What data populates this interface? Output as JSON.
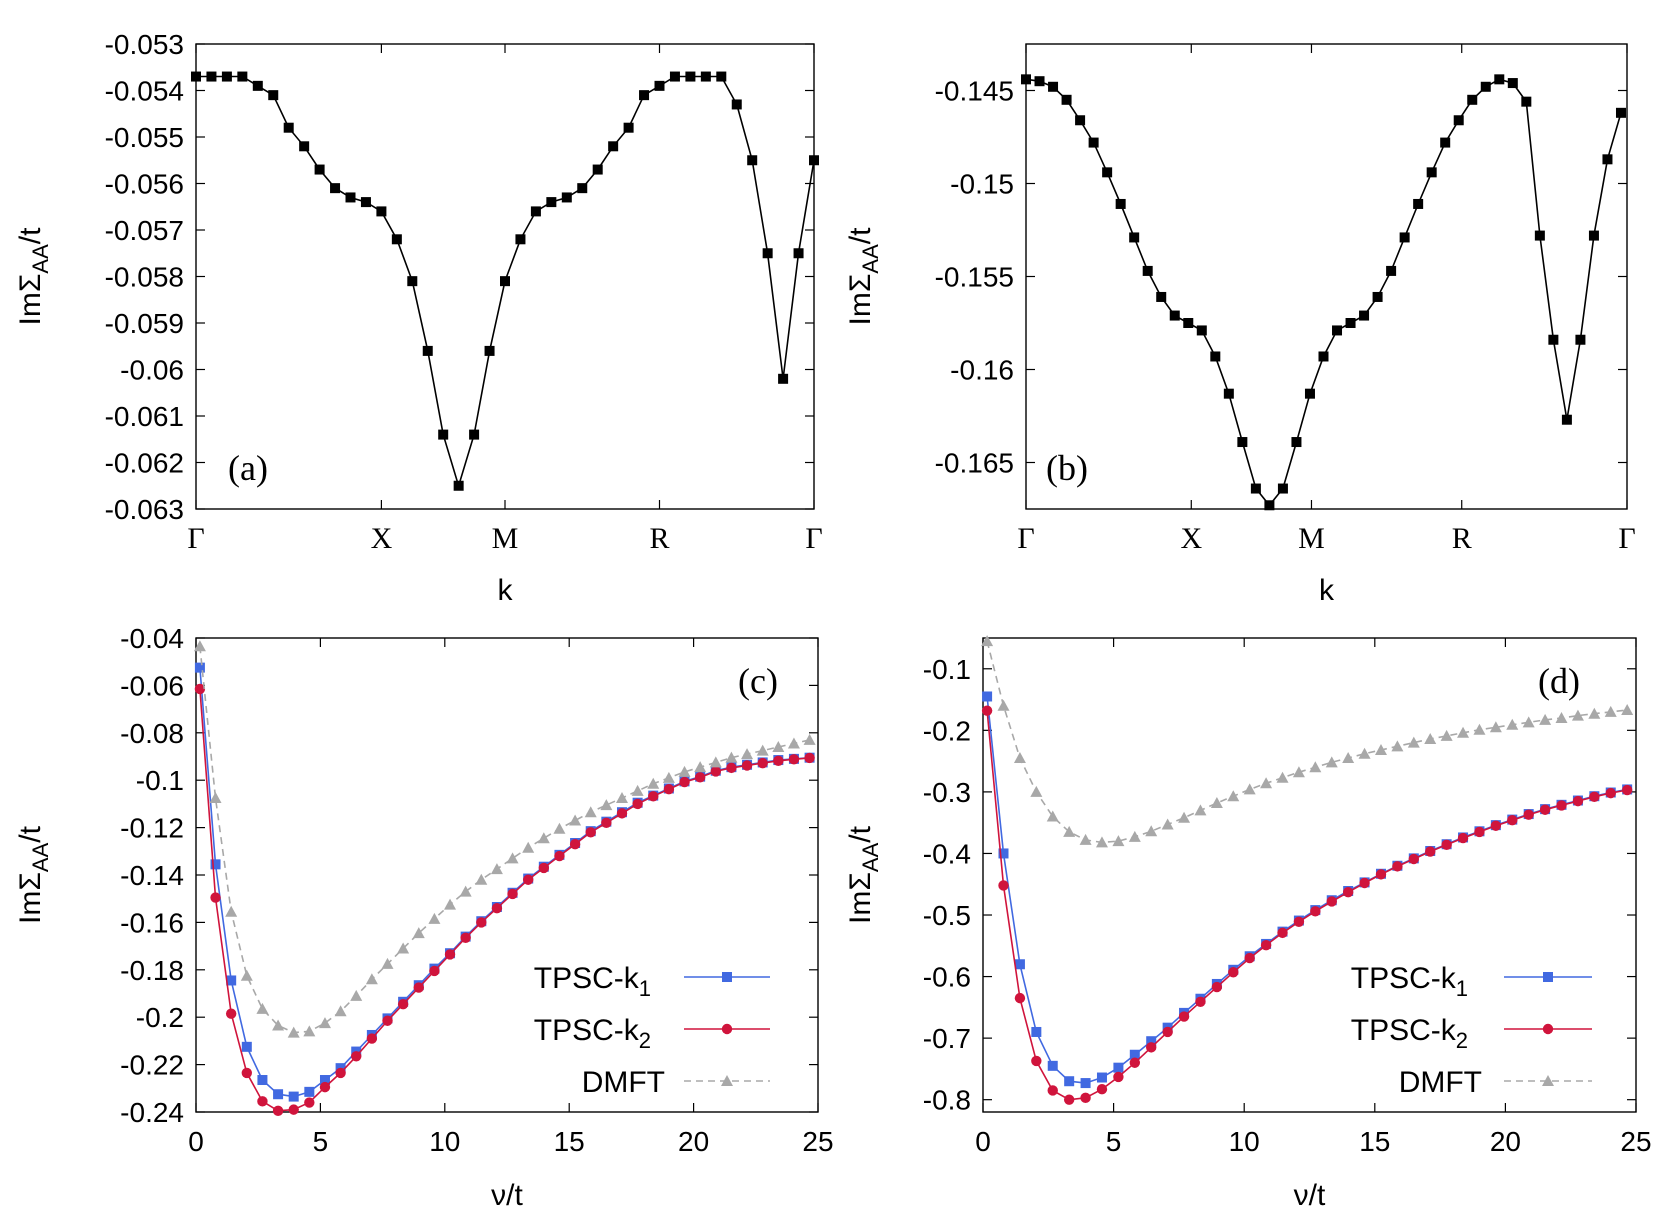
{
  "chart_data": [
    {
      "panel": "a",
      "type": "line",
      "panel_label": "(a)",
      "xlabel": "k",
      "ylabel": "ImΣAA/t",
      "ylabel_main": "ImΣ",
      "ylabel_sub": "AA",
      "ylabel_tail": "/t",
      "ylim": [
        -0.063,
        -0.053
      ],
      "yticks": [
        -0.053,
        -0.054,
        -0.055,
        -0.056,
        -0.057,
        -0.058,
        -0.059,
        -0.06,
        -0.061,
        -0.062,
        -0.063
      ],
      "ytick_labels": [
        "-0.053",
        "-0.054",
        "-0.055",
        "-0.056",
        "-0.057",
        "-0.058",
        "-0.059",
        "-0.06",
        "-0.061",
        "-0.062",
        "-0.063"
      ],
      "xlim": [
        0,
        40
      ],
      "xticks": [
        0,
        12,
        20,
        30,
        40
      ],
      "xtick_labels": [
        "Γ",
        "X",
        "M",
        "R",
        "Γ"
      ],
      "series": [
        {
          "name": "ImΣAA",
          "color": "#000000",
          "marker": "square",
          "line": "solid",
          "x": [
            0,
            1,
            2,
            3,
            4,
            5,
            6,
            7,
            8,
            9,
            10,
            11,
            12,
            13,
            14,
            15,
            16,
            17,
            18,
            19,
            20,
            21,
            22,
            23,
            24,
            25,
            26,
            27,
            28,
            29,
            30,
            31,
            32,
            33,
            34,
            35,
            36,
            37,
            38,
            39,
            40
          ],
          "values": [
            -0.0537,
            -0.0537,
            -0.0537,
            -0.0537,
            -0.0539,
            -0.0541,
            -0.0548,
            -0.0552,
            -0.0557,
            -0.0561,
            -0.0563,
            -0.0564,
            -0.0566,
            -0.0572,
            -0.0581,
            -0.0596,
            -0.0614,
            -0.0625,
            -0.0614,
            -0.0596,
            -0.0581,
            -0.0572,
            -0.0566,
            -0.0564,
            -0.0563,
            -0.0561,
            -0.0557,
            -0.0552,
            -0.0548,
            -0.0541,
            -0.0539,
            -0.0537,
            -0.0537,
            -0.0537,
            -0.0537,
            -0.0543,
            -0.0555,
            -0.0575,
            -0.0602,
            -0.0575,
            -0.0555
          ]
        }
      ]
    },
    {
      "panel": "b",
      "type": "line",
      "panel_label": "(b)",
      "xlabel": "k",
      "ylabel": "ImΣAA/t",
      "ylabel_main": "ImΣ",
      "ylabel_sub": "AA",
      "ylabel_tail": "/t",
      "ylim": [
        -0.1675,
        -0.1425
      ],
      "yticks": [
        -0.145,
        -0.15,
        -0.155,
        -0.16,
        -0.165
      ],
      "ytick_labels": [
        "-0.145",
        "-0.15",
        "-0.155",
        "-0.16",
        "-0.165"
      ],
      "xlim": [
        0,
        40
      ],
      "xticks": [
        0,
        11,
        19,
        29,
        40
      ],
      "xtick_labels": [
        "Γ",
        "X",
        "M",
        "R",
        "Γ"
      ],
      "series": [
        {
          "name": "ImΣAA",
          "color": "#000000",
          "marker": "square",
          "line": "solid",
          "x": [
            0,
            0.9,
            1.8,
            2.7,
            3.6,
            4.5,
            5.4,
            6.3,
            7.2,
            8.1,
            9,
            9.9,
            10.8,
            11.7,
            12.6,
            13.5,
            14.4,
            15.3,
            16.2,
            17.1,
            18,
            18.9,
            19.8,
            20.7,
            21.6,
            22.5,
            23.4,
            24.3,
            25.2,
            26.1,
            27,
            27.9,
            28.8,
            29.7,
            30.6,
            31.5,
            32.4,
            33.3,
            34.2,
            35.1,
            36,
            36.9,
            37.8,
            38.7,
            39.6
          ],
          "values": [
            -0.1444,
            -0.1445,
            -0.1448,
            -0.1455,
            -0.1466,
            -0.1478,
            -0.1494,
            -0.1511,
            -0.1529,
            -0.1547,
            -0.1561,
            -0.1571,
            -0.1575,
            -0.1579,
            -0.1593,
            -0.1613,
            -0.1639,
            -0.1664,
            -0.1673,
            -0.1664,
            -0.1639,
            -0.1613,
            -0.1593,
            -0.1579,
            -0.1575,
            -0.1571,
            -0.1561,
            -0.1547,
            -0.1529,
            -0.1511,
            -0.1494,
            -0.1478,
            -0.1466,
            -0.1455,
            -0.1448,
            -0.1444,
            -0.1446,
            -0.1456,
            -0.1528,
            -0.1584,
            -0.1627,
            -0.1584,
            -0.1528,
            -0.1487,
            -0.1462
          ]
        }
      ]
    },
    {
      "panel": "c",
      "type": "line",
      "panel_label": "(c)",
      "xlabel": "ν/t",
      "ylabel": "ImΣAA/t",
      "ylabel_main": "ImΣ",
      "ylabel_sub": "AA",
      "ylabel_tail": "/t",
      "ylim": [
        -0.24,
        -0.04
      ],
      "yticks": [
        -0.04,
        -0.06,
        -0.08,
        -0.1,
        -0.12,
        -0.14,
        -0.16,
        -0.18,
        -0.2,
        -0.22,
        -0.24
      ],
      "ytick_labels": [
        "-0.04",
        "-0.06",
        "-0.08",
        "-0.1",
        "-0.12",
        "-0.14",
        "-0.16",
        "-0.18",
        "-0.2",
        "-0.22",
        "-0.24"
      ],
      "xlim": [
        0,
        25
      ],
      "xticks": [
        0,
        5,
        10,
        15,
        20,
        25
      ],
      "xtick_labels": [
        "0",
        "5",
        "10",
        "15",
        "20",
        "25"
      ],
      "x": [
        0.157,
        0.785,
        1.414,
        2.042,
        2.67,
        3.299,
        3.927,
        4.555,
        5.184,
        5.812,
        6.44,
        7.069,
        7.697,
        8.325,
        8.954,
        9.582,
        10.21,
        10.838,
        11.467,
        12.095,
        12.723,
        13.352,
        13.98,
        14.608,
        15.237,
        15.865,
        16.493,
        17.122,
        17.75,
        18.378,
        19.007,
        19.635,
        20.263,
        20.892,
        21.52,
        22.148,
        22.777,
        23.405,
        24.033,
        24.662
      ],
      "series": [
        {
          "name": "TPSC-k1",
          "legend_main": "TPSC-k",
          "legend_sub": "1",
          "color": "#4169e1",
          "marker": "square",
          "line": "solid",
          "values": [
            -0.0525,
            -0.1355,
            -0.1845,
            -0.2125,
            -0.2265,
            -0.2325,
            -0.2335,
            -0.2315,
            -0.2265,
            -0.2215,
            -0.2145,
            -0.2075,
            -0.2005,
            -0.1935,
            -0.1865,
            -0.1795,
            -0.173,
            -0.166,
            -0.1595,
            -0.1535,
            -0.1475,
            -0.1415,
            -0.1365,
            -0.1315,
            -0.1265,
            -0.1215,
            -0.1175,
            -0.1135,
            -0.1095,
            -0.1065,
            -0.1035,
            -0.1005,
            -0.0985,
            -0.096,
            -0.0945,
            -0.0935,
            -0.0925,
            -0.0915,
            -0.091,
            -0.0905
          ]
        },
        {
          "name": "TPSC-k2",
          "legend_main": "TPSC-k",
          "legend_sub": "2",
          "color": "#d0143c",
          "marker": "circle",
          "line": "solid",
          "values": [
            -0.0615,
            -0.1495,
            -0.1985,
            -0.2235,
            -0.2355,
            -0.2395,
            -0.239,
            -0.236,
            -0.2295,
            -0.2235,
            -0.2165,
            -0.209,
            -0.2015,
            -0.1945,
            -0.1875,
            -0.1805,
            -0.1735,
            -0.1665,
            -0.16,
            -0.154,
            -0.148,
            -0.142,
            -0.137,
            -0.132,
            -0.127,
            -0.122,
            -0.118,
            -0.114,
            -0.11,
            -0.1068,
            -0.1038,
            -0.1008,
            -0.0988,
            -0.0963,
            -0.0948,
            -0.0938,
            -0.0928,
            -0.0918,
            -0.0912,
            -0.0906
          ]
        },
        {
          "name": "DMFT",
          "color": "#a8a8a8",
          "marker": "triangle",
          "line": "dashed",
          "values": [
            -0.0435,
            -0.1075,
            -0.1555,
            -0.1825,
            -0.1965,
            -0.2035,
            -0.2065,
            -0.206,
            -0.2025,
            -0.1975,
            -0.191,
            -0.184,
            -0.1775,
            -0.171,
            -0.1645,
            -0.1585,
            -0.1525,
            -0.147,
            -0.142,
            -0.1375,
            -0.133,
            -0.1285,
            -0.1245,
            -0.1205,
            -0.117,
            -0.1135,
            -0.1105,
            -0.1075,
            -0.1045,
            -0.1015,
            -0.099,
            -0.0965,
            -0.0945,
            -0.0925,
            -0.0905,
            -0.089,
            -0.0875,
            -0.086,
            -0.0845,
            -0.083
          ]
        }
      ]
    },
    {
      "panel": "d",
      "type": "line",
      "panel_label": "(d)",
      "xlabel": "ν/t",
      "ylabel": "ImΣAA/t",
      "ylabel_main": "ImΣ",
      "ylabel_sub": "AA",
      "ylabel_tail": "/t",
      "ylim": [
        -0.82,
        -0.05
      ],
      "yticks": [
        -0.1,
        -0.2,
        -0.3,
        -0.4,
        -0.5,
        -0.6,
        -0.7,
        -0.8
      ],
      "ytick_labels": [
        "-0.1",
        "-0.2",
        "-0.3",
        "-0.4",
        "-0.5",
        "-0.6",
        "-0.7",
        "-0.8"
      ],
      "xlim": [
        0,
        25
      ],
      "xticks": [
        0,
        5,
        10,
        15,
        20,
        25
      ],
      "xtick_labels": [
        "0",
        "5",
        "10",
        "15",
        "20",
        "25"
      ],
      "x": [
        0.157,
        0.785,
        1.414,
        2.042,
        2.67,
        3.299,
        3.927,
        4.555,
        5.184,
        5.812,
        6.44,
        7.069,
        7.697,
        8.325,
        8.954,
        9.582,
        10.21,
        10.838,
        11.467,
        12.095,
        12.723,
        13.352,
        13.98,
        14.608,
        15.237,
        15.865,
        16.493,
        17.122,
        17.75,
        18.378,
        19.007,
        19.635,
        20.263,
        20.892,
        21.52,
        22.148,
        22.777,
        23.405,
        24.033,
        24.662
      ],
      "series": [
        {
          "name": "TPSC-k1",
          "legend_main": "TPSC-k",
          "legend_sub": "1",
          "color": "#4169e1",
          "marker": "square",
          "line": "solid",
          "values": [
            -0.145,
            -0.4,
            -0.58,
            -0.69,
            -0.745,
            -0.77,
            -0.773,
            -0.764,
            -0.748,
            -0.727,
            -0.705,
            -0.683,
            -0.659,
            -0.636,
            -0.612,
            -0.589,
            -0.567,
            -0.547,
            -0.527,
            -0.509,
            -0.492,
            -0.476,
            -0.461,
            -0.447,
            -0.433,
            -0.42,
            -0.408,
            -0.396,
            -0.385,
            -0.374,
            -0.364,
            -0.354,
            -0.345,
            -0.336,
            -0.328,
            -0.321,
            -0.314,
            -0.307,
            -0.301,
            -0.296
          ]
        },
        {
          "name": "TPSC-k2",
          "legend_main": "TPSC-k",
          "legend_sub": "2",
          "color": "#d0143c",
          "marker": "circle",
          "line": "solid",
          "values": [
            -0.168,
            -0.452,
            -0.635,
            -0.737,
            -0.785,
            -0.8,
            -0.797,
            -0.783,
            -0.763,
            -0.74,
            -0.715,
            -0.69,
            -0.665,
            -0.641,
            -0.617,
            -0.593,
            -0.57,
            -0.549,
            -0.529,
            -0.511,
            -0.494,
            -0.478,
            -0.463,
            -0.448,
            -0.434,
            -0.421,
            -0.409,
            -0.397,
            -0.386,
            -0.375,
            -0.365,
            -0.355,
            -0.346,
            -0.337,
            -0.329,
            -0.322,
            -0.315,
            -0.308,
            -0.302,
            -0.297
          ]
        },
        {
          "name": "DMFT",
          "color": "#a8a8a8",
          "marker": "triangle",
          "line": "dashed",
          "values": [
            -0.055,
            -0.16,
            -0.245,
            -0.3,
            -0.34,
            -0.365,
            -0.378,
            -0.382,
            -0.38,
            -0.373,
            -0.364,
            -0.353,
            -0.342,
            -0.33,
            -0.318,
            -0.307,
            -0.296,
            -0.286,
            -0.277,
            -0.268,
            -0.26,
            -0.252,
            -0.245,
            -0.238,
            -0.232,
            -0.226,
            -0.22,
            -0.214,
            -0.209,
            -0.204,
            -0.199,
            -0.195,
            -0.191,
            -0.187,
            -0.183,
            -0.18,
            -0.176,
            -0.173,
            -0.17,
            -0.167
          ]
        }
      ]
    }
  ]
}
